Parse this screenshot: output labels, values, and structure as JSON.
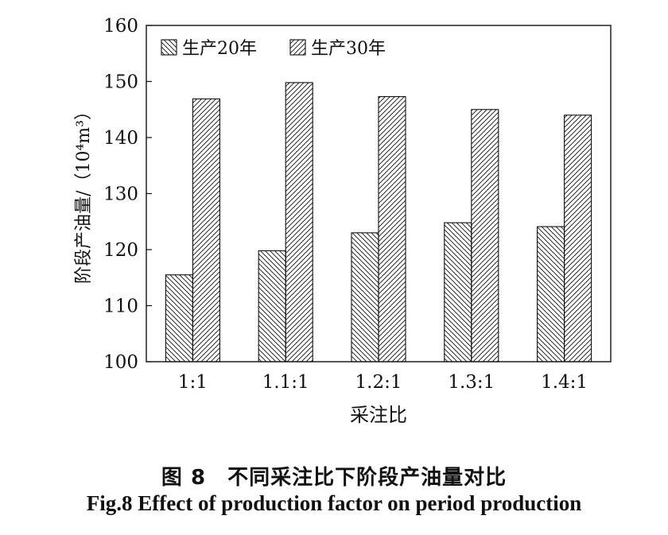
{
  "chart_data": {
    "type": "bar",
    "xlabel": "采注比",
    "ylabel": "阶段产油量/（10⁴m³）",
    "categories": [
      "1:1",
      "1.1:1",
      "1.2:1",
      "1.3:1",
      "1.4:1"
    ],
    "series": [
      {
        "name": "生产20年",
        "values": [
          115.5,
          119.8,
          123.0,
          124.8,
          124.1
        ],
        "hatch": "backslash"
      },
      {
        "name": "生产30年",
        "values": [
          146.9,
          149.8,
          147.3,
          145.0,
          144.0
        ],
        "hatch": "slash"
      }
    ],
    "ylim": [
      100,
      160
    ],
    "yticks": [
      100,
      110,
      120,
      130,
      140,
      150,
      160
    ],
    "grid": false,
    "legend_position": "top-left"
  },
  "caption": {
    "cn": "图 8　不同采注比下阶段产油量对比",
    "en": "Fig.8 Effect of production factor on period production"
  },
  "colors": {
    "bar_fill": "#ffffff",
    "stroke": "#111111"
  }
}
